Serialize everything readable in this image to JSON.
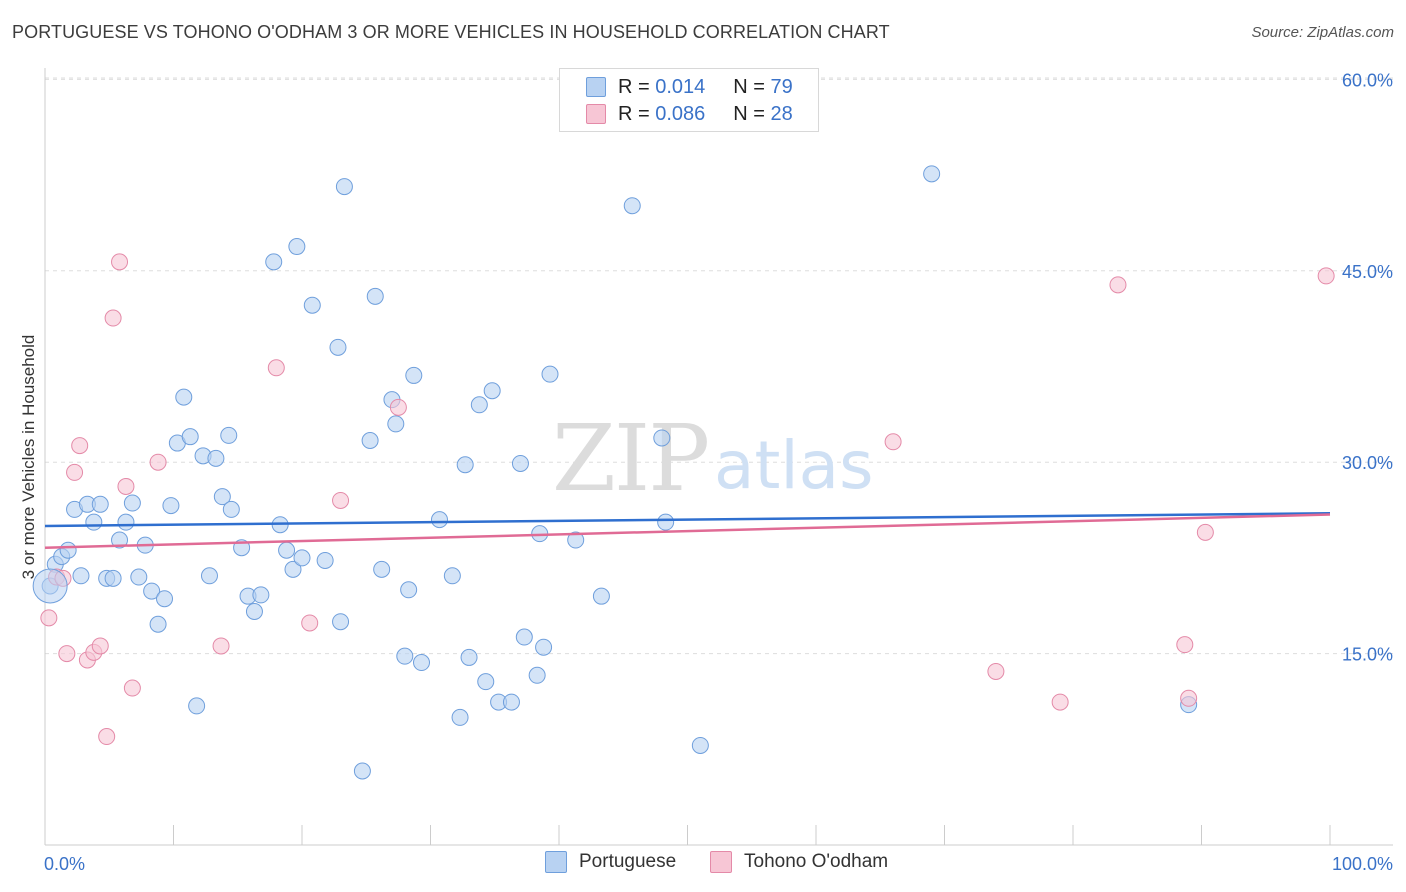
{
  "header": {
    "title": "PORTUGUESE VS TOHONO O'ODHAM 3 OR MORE VEHICLES IN HOUSEHOLD CORRELATION CHART",
    "source": "Source: ZipAtlas.com"
  },
  "legend": {
    "rows": [
      {
        "r_label": "R =",
        "r_value": "0.014",
        "n_label": "N =",
        "n_value": "79"
      },
      {
        "r_label": "R =",
        "r_value": "0.086",
        "n_label": "N =",
        "n_value": "28"
      }
    ]
  },
  "bottom_legend": [
    "Portuguese",
    "Tohono O'odham"
  ],
  "watermark": {
    "zip": "ZIP",
    "atlas": "atlas"
  },
  "colors": {
    "portuguese_fill": "#b8d2f2",
    "portuguese_stroke": "#6f9fdc",
    "portuguese_line": "#2f6fcf",
    "tohono_fill": "#f7c6d5",
    "tohono_stroke": "#e48aa8",
    "tohono_line": "#e06b95",
    "axis_text": "#3a72c8",
    "grid": "#dddddd"
  },
  "chart_data": {
    "type": "scatter",
    "title": "PORTUGUESE VS TOHONO O'ODHAM 3 OR MORE VEHICLES IN HOUSEHOLD CORRELATION CHART",
    "xlabel": "",
    "ylabel": "3 or more Vehicles in Household",
    "xlim": [
      0,
      100
    ],
    "ylim": [
      0,
      63
    ],
    "x_tick_labels": [
      "0.0%",
      "100.0%"
    ],
    "y_ticks": [
      15,
      30,
      45,
      60
    ],
    "y_tick_labels": [
      "15.0%",
      "30.0%",
      "45.0%",
      "60.0%"
    ],
    "grid": true,
    "legend_position": "top-center",
    "series": [
      {
        "name": "Portuguese",
        "R": 0.014,
        "N": 79,
        "trend": [
          [
            0,
            25.0
          ],
          [
            100,
            26.0
          ]
        ],
        "points": [
          [
            0.4,
            20.3
          ],
          [
            0.8,
            22.0
          ],
          [
            1.3,
            22.6
          ],
          [
            1.8,
            23.1
          ],
          [
            2.3,
            26.3
          ],
          [
            2.8,
            21.1
          ],
          [
            3.3,
            26.7
          ],
          [
            3.8,
            25.3
          ],
          [
            4.3,
            26.7
          ],
          [
            4.8,
            20.9
          ],
          [
            5.3,
            20.9
          ],
          [
            5.8,
            23.9
          ],
          [
            6.3,
            25.3
          ],
          [
            6.8,
            26.8
          ],
          [
            7.3,
            21.0
          ],
          [
            7.8,
            23.5
          ],
          [
            8.3,
            19.9
          ],
          [
            8.8,
            17.3
          ],
          [
            9.3,
            19.3
          ],
          [
            9.8,
            26.6
          ],
          [
            10.3,
            31.5
          ],
          [
            10.8,
            35.1
          ],
          [
            11.3,
            32.0
          ],
          [
            11.8,
            10.9
          ],
          [
            12.3,
            30.5
          ],
          [
            12.8,
            21.1
          ],
          [
            13.3,
            30.3
          ],
          [
            13.8,
            27.3
          ],
          [
            14.3,
            32.1
          ],
          [
            14.5,
            26.3
          ],
          [
            15.3,
            23.3
          ],
          [
            15.8,
            19.5
          ],
          [
            16.3,
            18.3
          ],
          [
            16.8,
            19.6
          ],
          [
            17.8,
            45.7
          ],
          [
            18.3,
            25.1
          ],
          [
            18.8,
            23.1
          ],
          [
            19.3,
            21.6
          ],
          [
            19.6,
            46.9
          ],
          [
            20.0,
            22.5
          ],
          [
            20.8,
            42.3
          ],
          [
            21.8,
            22.3
          ],
          [
            22.8,
            39.0
          ],
          [
            23.0,
            17.5
          ],
          [
            23.3,
            51.6
          ],
          [
            24.7,
            5.8
          ],
          [
            25.3,
            31.7
          ],
          [
            25.7,
            43.0
          ],
          [
            26.2,
            21.6
          ],
          [
            27.0,
            34.9
          ],
          [
            27.3,
            33.0
          ],
          [
            28.0,
            14.8
          ],
          [
            28.7,
            36.8
          ],
          [
            28.3,
            20.0
          ],
          [
            29.3,
            14.3
          ],
          [
            30.7,
            25.5
          ],
          [
            31.7,
            21.1
          ],
          [
            32.3,
            10.0
          ],
          [
            32.7,
            29.8
          ],
          [
            33.0,
            14.7
          ],
          [
            33.8,
            34.5
          ],
          [
            34.3,
            12.8
          ],
          [
            34.8,
            35.6
          ],
          [
            35.3,
            11.2
          ],
          [
            36.3,
            11.2
          ],
          [
            37.0,
            29.9
          ],
          [
            37.3,
            16.3
          ],
          [
            38.3,
            13.3
          ],
          [
            38.5,
            24.4
          ],
          [
            38.8,
            15.5
          ],
          [
            39.3,
            36.9
          ],
          [
            41.3,
            23.9
          ],
          [
            43.3,
            19.5
          ],
          [
            45.7,
            50.1
          ],
          [
            48.0,
            31.9
          ],
          [
            48.3,
            25.3
          ],
          [
            51.0,
            7.8
          ],
          [
            69.0,
            52.6
          ],
          [
            89.0,
            11.0
          ]
        ]
      },
      {
        "name": "Tohono O'odham",
        "R": 0.086,
        "N": 28,
        "trend": [
          [
            0,
            23.3
          ],
          [
            100,
            25.9
          ]
        ],
        "points": [
          [
            0.3,
            17.8
          ],
          [
            0.9,
            21.0
          ],
          [
            1.4,
            20.9
          ],
          [
            1.7,
            15.0
          ],
          [
            2.3,
            29.2
          ],
          [
            2.7,
            31.3
          ],
          [
            3.3,
            14.5
          ],
          [
            3.8,
            15.1
          ],
          [
            4.3,
            15.6
          ],
          [
            4.8,
            8.5
          ],
          [
            5.3,
            41.3
          ],
          [
            5.8,
            45.7
          ],
          [
            6.3,
            28.1
          ],
          [
            6.8,
            12.3
          ],
          [
            8.8,
            30.0
          ],
          [
            13.7,
            15.6
          ],
          [
            18.0,
            37.4
          ],
          [
            20.6,
            17.4
          ],
          [
            23.0,
            27.0
          ],
          [
            27.5,
            34.3
          ],
          [
            66.0,
            31.6
          ],
          [
            74.0,
            13.6
          ],
          [
            79.0,
            11.2
          ],
          [
            83.5,
            43.9
          ],
          [
            88.7,
            15.7
          ],
          [
            89.0,
            11.5
          ],
          [
            90.3,
            24.5
          ],
          [
            99.7,
            44.6
          ]
        ]
      }
    ]
  }
}
